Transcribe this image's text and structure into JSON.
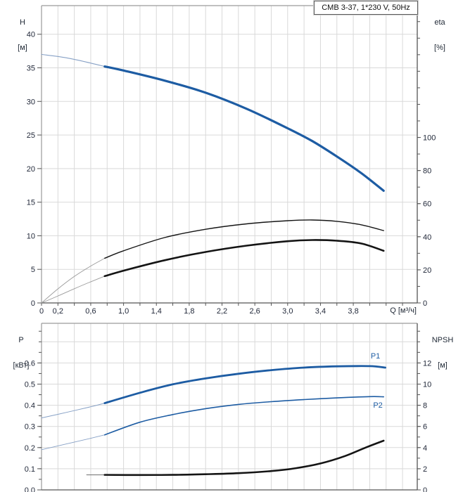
{
  "title_box": {
    "label": "CMB 3-37, 1*230 V, 50Hz"
  },
  "axis_labels": {
    "top_left": [
      "H",
      "[м]"
    ],
    "top_right": [
      "eta",
      "[%]"
    ],
    "x": "Q [м³/ч]",
    "bottom_left": [
      "P",
      "[кВт]"
    ],
    "bottom_right": [
      "NPSH",
      "[м]"
    ]
  },
  "colors": {
    "curve_blue": "#1d5ca3",
    "curve_blue_thin": "#87a1c6",
    "curve_black": "#141414",
    "curve_gray_thin": "#9a9a9a",
    "npsh_lead_gray": "#6e6e6e",
    "grid": "#d9d9d9",
    "frame_light": "#9a9a9a",
    "frame_dark": "#555555",
    "tick_text": "#22293a",
    "annotation_blue": "#1d5ca3"
  },
  "chart_data": [
    {
      "type": "line",
      "title": "CMB 3-37, 1*230 V, 50Hz",
      "xlabel": "Q [м³/ч]",
      "legend_position": "none",
      "grid": true,
      "left_axis": {
        "label": "H [м]",
        "range": [
          0,
          44.25
        ],
        "grid_step": 5,
        "ticks": [
          {
            "v": 0,
            "t": "0"
          },
          {
            "v": 5,
            "t": "5"
          },
          {
            "v": 10,
            "t": "10"
          },
          {
            "v": 15,
            "t": "15"
          },
          {
            "v": 20,
            "t": "20"
          },
          {
            "v": 25,
            "t": "25"
          },
          {
            "v": 30,
            "t": "30"
          },
          {
            "v": 35,
            "t": "35"
          },
          {
            "v": 40,
            "t": "40"
          }
        ]
      },
      "right_axis": {
        "label": "eta [%]",
        "range": [
          0,
          179.6
        ],
        "minor_step": 10,
        "minor_max": 170,
        "ticks": [
          {
            "v": 0,
            "t": "0"
          },
          {
            "v": 20,
            "t": "20"
          },
          {
            "v": 40,
            "t": "40"
          },
          {
            "v": 60,
            "t": "60"
          },
          {
            "v": 80,
            "t": "80"
          },
          {
            "v": 100,
            "t": "100"
          }
        ]
      },
      "x_axis": {
        "range": [
          0,
          4.58
        ],
        "minor_step": 0.2,
        "show_ticks": true,
        "ticks": [
          {
            "v": 0,
            "t": "0"
          },
          {
            "v": 0.2,
            "t": "0,2"
          },
          {
            "v": 0.6,
            "t": "0,6"
          },
          {
            "v": 1.0,
            "t": "1,0"
          },
          {
            "v": 1.4,
            "t": "1,4"
          },
          {
            "v": 1.8,
            "t": "1,8"
          },
          {
            "v": 2.2,
            "t": "2,2"
          },
          {
            "v": 2.6,
            "t": "2,6"
          },
          {
            "v": 3.0,
            "t": "3,0"
          },
          {
            "v": 3.4,
            "t": "3,4"
          },
          {
            "v": 3.8,
            "t": "3,8"
          }
        ]
      },
      "series": [
        {
          "name": "H-curve-lead",
          "axis": "left",
          "color": "curve_blue_thin",
          "width": 1.1,
          "points": [
            [
              0,
              37.0
            ],
            [
              0.3,
              36.5
            ],
            [
              0.6,
              35.7
            ],
            [
              0.77,
              35.2
            ]
          ]
        },
        {
          "name": "H-curve",
          "axis": "left",
          "color": "curve_blue",
          "width": 3.2,
          "points": [
            [
              0.77,
              35.2
            ],
            [
              1.0,
              34.6
            ],
            [
              1.5,
              33.1
            ],
            [
              2.0,
              31.3
            ],
            [
              2.5,
              28.9
            ],
            [
              3.0,
              26.0
            ],
            [
              3.3,
              24.1
            ],
            [
              3.6,
              21.8
            ],
            [
              3.9,
              19.3
            ],
            [
              4.17,
              16.7
            ]
          ]
        },
        {
          "name": "eta-pump-lead",
          "axis": "right",
          "color": "curve_gray_thin",
          "width": 0.9,
          "points": [
            [
              0,
              0
            ],
            [
              0.2,
              8.5
            ],
            [
              0.4,
              16.0
            ],
            [
              0.6,
              22.3
            ],
            [
              0.77,
              27.0
            ]
          ]
        },
        {
          "name": "eta-pump",
          "axis": "right",
          "color": "curve_black",
          "width": 1.4,
          "points": [
            [
              0.77,
              27.0
            ],
            [
              1.0,
              31.5
            ],
            [
              1.5,
              39.5
            ],
            [
              2.0,
              44.5
            ],
            [
              2.5,
              47.8
            ],
            [
              3.0,
              49.7
            ],
            [
              3.3,
              50.1
            ],
            [
              3.6,
              49.3
            ],
            [
              3.9,
              47.2
            ],
            [
              4.17,
              43.7
            ]
          ]
        },
        {
          "name": "eta-total-lead",
          "axis": "right",
          "color": "curve_gray_thin",
          "width": 0.9,
          "points": [
            [
              0,
              0
            ],
            [
              0.2,
              4.2
            ],
            [
              0.4,
              8.6
            ],
            [
              0.6,
              12.8
            ],
            [
              0.77,
              16.2
            ]
          ]
        },
        {
          "name": "eta-total",
          "axis": "right",
          "color": "curve_black",
          "width": 2.6,
          "points": [
            [
              0.77,
              16.2
            ],
            [
              1.0,
              19.5
            ],
            [
              1.5,
              25.8
            ],
            [
              2.0,
              30.8
            ],
            [
              2.5,
              34.6
            ],
            [
              3.0,
              37.3
            ],
            [
              3.3,
              38.0
            ],
            [
              3.6,
              37.6
            ],
            [
              3.9,
              35.9
            ],
            [
              4.17,
              31.5
            ]
          ]
        }
      ],
      "annotations": []
    },
    {
      "type": "line",
      "title": "",
      "xlabel": "",
      "grid": true,
      "left_axis": {
        "label": "P [кВт]",
        "range": [
          0,
          0.787
        ],
        "grid_step": 0.1,
        "minor_step": 0.05,
        "minor_max": 0.75,
        "ticks": [
          {
            "v": 0.0,
            "t": "0.0"
          },
          {
            "v": 0.1,
            "t": "0.1"
          },
          {
            "v": 0.2,
            "t": "0.2"
          },
          {
            "v": 0.3,
            "t": "0.3"
          },
          {
            "v": 0.4,
            "t": "0.4"
          },
          {
            "v": 0.5,
            "t": "0.5"
          },
          {
            "v": 0.6,
            "t": "0.6"
          }
        ]
      },
      "right_axis": {
        "label": "NPSH [м]",
        "range": [
          0,
          15.75
        ],
        "minor_step": 1,
        "minor_max": 15,
        "ticks": [
          {
            "v": 0,
            "t": "0"
          },
          {
            "v": 2,
            "t": "2"
          },
          {
            "v": 4,
            "t": "4"
          },
          {
            "v": 6,
            "t": "6"
          },
          {
            "v": 8,
            "t": "8"
          },
          {
            "v": 10,
            "t": "10"
          },
          {
            "v": 12,
            "t": "12"
          }
        ]
      },
      "x_axis": {
        "range": [
          0,
          4.58
        ],
        "minor_step": 0.2,
        "show_ticks": false,
        "ticks": []
      },
      "series": [
        {
          "name": "P1-lead",
          "axis": "left",
          "color": "curve_blue_thin",
          "width": 1.0,
          "points": [
            [
              0,
              0.34
            ],
            [
              0.3,
              0.366
            ],
            [
              0.6,
              0.393
            ],
            [
              0.77,
              0.41
            ]
          ]
        },
        {
          "name": "P1",
          "axis": "left",
          "color": "curve_blue",
          "width": 2.8,
          "points": [
            [
              0.77,
              0.41
            ],
            [
              1.2,
              0.459
            ],
            [
              1.6,
              0.499
            ],
            [
              2.0,
              0.527
            ],
            [
              2.4,
              0.549
            ],
            [
              2.8,
              0.566
            ],
            [
              3.2,
              0.578
            ],
            [
              3.6,
              0.584
            ],
            [
              4.0,
              0.585
            ],
            [
              4.19,
              0.578
            ]
          ]
        },
        {
          "name": "P2-lead",
          "axis": "left",
          "color": "curve_blue_thin",
          "width": 0.9,
          "points": [
            [
              0,
              0.19
            ],
            [
              0.3,
              0.217
            ],
            [
              0.6,
              0.244
            ],
            [
              0.77,
              0.26
            ]
          ]
        },
        {
          "name": "P2",
          "axis": "left",
          "color": "curve_blue",
          "width": 1.6,
          "points": [
            [
              0.77,
              0.26
            ],
            [
              1.2,
              0.32
            ],
            [
              1.6,
              0.356
            ],
            [
              2.0,
              0.384
            ],
            [
              2.4,
              0.404
            ],
            [
              2.8,
              0.417
            ],
            [
              3.2,
              0.427
            ],
            [
              3.6,
              0.435
            ],
            [
              4.0,
              0.441
            ],
            [
              4.17,
              0.44
            ]
          ]
        },
        {
          "name": "NPSH-lead",
          "axis": "right",
          "color": "npsh_lead_gray",
          "width": 1.0,
          "points": [
            [
              0.55,
              1.42
            ],
            [
              0.77,
              1.42
            ]
          ]
        },
        {
          "name": "NPSH",
          "axis": "right",
          "color": "curve_black",
          "width": 2.6,
          "points": [
            [
              0.77,
              1.42
            ],
            [
              1.2,
              1.41
            ],
            [
              1.6,
              1.42
            ],
            [
              2.0,
              1.48
            ],
            [
              2.4,
              1.58
            ],
            [
              2.8,
              1.78
            ],
            [
              3.1,
              2.05
            ],
            [
              3.4,
              2.5
            ],
            [
              3.7,
              3.2
            ],
            [
              3.95,
              4.0
            ],
            [
              4.17,
              4.65
            ]
          ]
        }
      ],
      "annotations": [
        {
          "text": "P1",
          "axis": "left",
          "q": 4.07,
          "v": 0.634,
          "color": "annotation_blue"
        },
        {
          "text": "P2",
          "axis": "left",
          "q": 4.1,
          "v": 0.402,
          "color": "annotation_blue"
        }
      ]
    }
  ]
}
